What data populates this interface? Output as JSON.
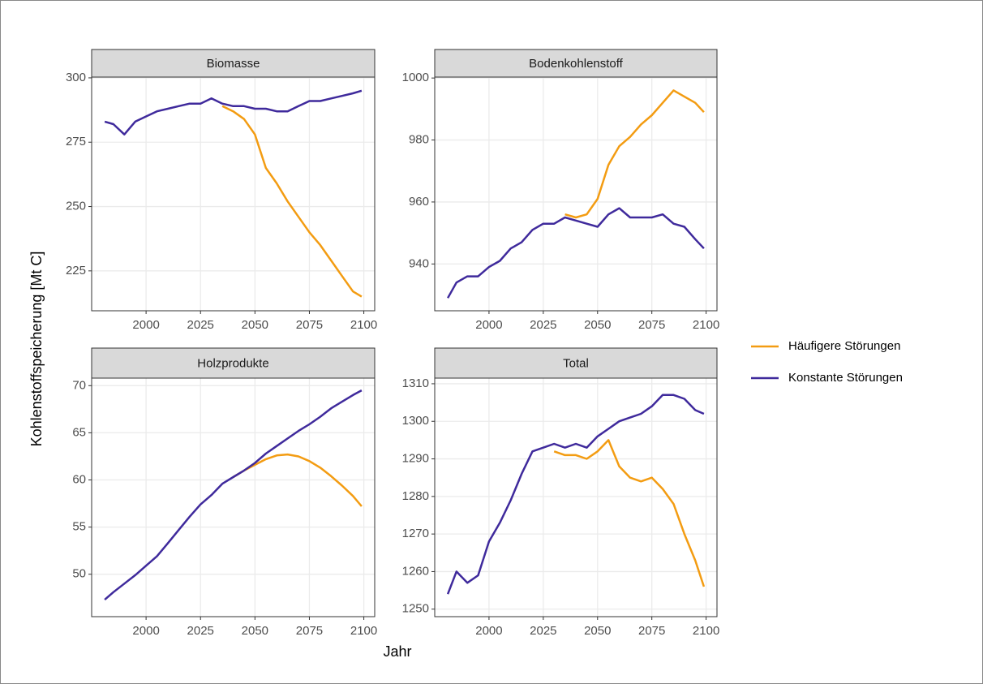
{
  "chart_data": [
    {
      "type": "line",
      "title": "Biomasse",
      "x": [
        1981,
        1985,
        1990,
        1995,
        2000,
        2005,
        2010,
        2015,
        2020,
        2025,
        2030,
        2035,
        2040,
        2045,
        2050,
        2055,
        2060,
        2065,
        2070,
        2075,
        2080,
        2085,
        2090,
        2095,
        2099
      ],
      "series": [
        {
          "name": "Häufigere Störungen",
          "color": "#f39c12",
          "values": [
            null,
            null,
            null,
            null,
            null,
            null,
            null,
            null,
            null,
            null,
            null,
            289,
            287,
            284,
            278,
            265,
            259,
            252,
            246,
            240,
            235,
            229,
            223,
            217,
            215
          ]
        },
        {
          "name": "Konstante Störungen",
          "color": "#3f2a9c",
          "values": [
            283,
            282,
            278,
            283,
            285,
            287,
            288,
            289,
            290,
            290,
            292,
            290,
            289,
            289,
            288,
            288,
            287,
            287,
            289,
            291,
            291,
            292,
            293,
            294,
            295
          ]
        }
      ],
      "xlim": [
        1975,
        2105
      ],
      "ylim": [
        209.5,
        300.3
      ],
      "xticks": [
        2000,
        2025,
        2050,
        2075,
        2100
      ],
      "yticks": [
        225,
        250,
        275,
        300
      ],
      "grid": true
    },
    {
      "type": "line",
      "title": "Bodenkohlenstoff",
      "x": [
        1981,
        1985,
        1990,
        1995,
        2000,
        2005,
        2010,
        2015,
        2020,
        2025,
        2030,
        2035,
        2040,
        2045,
        2050,
        2055,
        2060,
        2065,
        2070,
        2075,
        2080,
        2085,
        2090,
        2095,
        2099
      ],
      "series": [
        {
          "name": "Häufigere Störungen",
          "color": "#f39c12",
          "values": [
            null,
            null,
            null,
            null,
            null,
            null,
            null,
            null,
            null,
            null,
            null,
            956,
            955,
            956,
            961,
            972,
            978,
            981,
            985,
            988,
            992,
            996,
            994,
            992,
            989
          ]
        },
        {
          "name": "Konstante Störungen",
          "color": "#3f2a9c",
          "values": [
            929,
            934,
            936,
            936,
            939,
            941,
            945,
            947,
            951,
            953,
            953,
            955,
            954,
            953,
            952,
            956,
            958,
            955,
            955,
            955,
            956,
            953,
            952,
            948,
            945
          ]
        }
      ],
      "xlim": [
        1975,
        2105
      ],
      "ylim": [
        924.9,
        1000.3
      ],
      "xticks": [
        2000,
        2025,
        2050,
        2075,
        2100
      ],
      "yticks": [
        940,
        960,
        980,
        1000
      ],
      "grid": true
    },
    {
      "type": "line",
      "title": "Holzprodukte",
      "x": [
        1981,
        1985,
        1990,
        1995,
        2000,
        2005,
        2010,
        2015,
        2020,
        2025,
        2030,
        2035,
        2040,
        2045,
        2050,
        2055,
        2060,
        2065,
        2070,
        2075,
        2080,
        2085,
        2090,
        2095,
        2099
      ],
      "series": [
        {
          "name": "Häufigere Störungen",
          "color": "#f39c12",
          "values": [
            null,
            null,
            null,
            null,
            null,
            null,
            null,
            null,
            null,
            null,
            null,
            null,
            60.3,
            61.0,
            61.6,
            62.2,
            62.6,
            62.7,
            62.5,
            62.0,
            61.3,
            60.4,
            59.4,
            58.3,
            57.2
          ]
        },
        {
          "name": "Konstante Störungen",
          "color": "#3f2a9c",
          "values": [
            47.3,
            48.1,
            49.0,
            49.9,
            50.9,
            51.9,
            53.3,
            54.7,
            56.1,
            57.4,
            58.4,
            59.6,
            60.3,
            61.0,
            61.8,
            62.8,
            63.6,
            64.4,
            65.2,
            65.9,
            66.7,
            67.6,
            68.3,
            69.0,
            69.5
          ]
        }
      ],
      "xlim": [
        1975,
        2105
      ],
      "ylim": [
        45.5,
        70.8
      ],
      "xticks": [
        2000,
        2025,
        2050,
        2075,
        2100
      ],
      "yticks": [
        50,
        55,
        60,
        65,
        70
      ],
      "grid": true
    },
    {
      "type": "line",
      "title": "Total",
      "x": [
        1981,
        1985,
        1990,
        1995,
        2000,
        2005,
        2010,
        2015,
        2020,
        2025,
        2030,
        2035,
        2040,
        2045,
        2050,
        2055,
        2060,
        2065,
        2070,
        2075,
        2080,
        2085,
        2090,
        2095,
        2099
      ],
      "series": [
        {
          "name": "Häufigere Störungen",
          "color": "#f39c12",
          "values": [
            null,
            null,
            null,
            null,
            null,
            null,
            null,
            null,
            null,
            null,
            1292,
            1291,
            1291,
            1290,
            1292,
            1295,
            1288,
            1285,
            1284,
            1285,
            1282,
            1278,
            1270,
            1263,
            1256
          ]
        },
        {
          "name": "Konstante Störungen",
          "color": "#3f2a9c",
          "values": [
            1254,
            1260,
            1257,
            1259,
            1268,
            1273,
            1279,
            1286,
            1292,
            1293,
            1294,
            1293,
            1294,
            1293,
            1296,
            1298,
            1300,
            1301,
            1302,
            1304,
            1307,
            1307,
            1306,
            1303,
            1302
          ]
        }
      ],
      "xlim": [
        1975,
        2105
      ],
      "ylim": [
        1248,
        1311.5
      ],
      "xticks": [
        2000,
        2025,
        2050,
        2075,
        2100
      ],
      "yticks": [
        1250,
        1260,
        1270,
        1280,
        1290,
        1300,
        1310
      ],
      "grid": true
    }
  ],
  "axis_titles": {
    "x": "Jahr",
    "y": "Kohlenstoffspeicherung [Mt C]"
  },
  "legend": "right"
}
